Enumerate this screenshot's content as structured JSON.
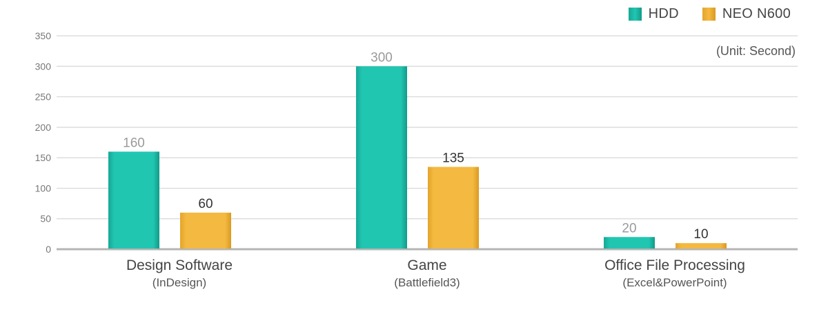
{
  "chart_data": {
    "type": "bar",
    "categories": [
      {
        "name": "Design Software",
        "sub": "(InDesign)"
      },
      {
        "name": "Game",
        "sub": "(Battlefield3)"
      },
      {
        "name": "Office File Processing",
        "sub": "(Excel&PowerPoint)"
      }
    ],
    "series": [
      {
        "name": "HDD",
        "values": [
          160,
          300,
          20
        ],
        "color": "#1fc3ae",
        "label_color": "#9a9a9a"
      },
      {
        "name": "NEO N600",
        "values": [
          60,
          135,
          10
        ],
        "color": "#f2b63d",
        "label_color": "#333333"
      }
    ],
    "unit_label": "(Unit: Second)",
    "ylim": [
      0,
      350
    ],
    "yticks": [
      0,
      50,
      100,
      150,
      200,
      250,
      300,
      350
    ],
    "grid": true,
    "legend_position": "top-right"
  }
}
